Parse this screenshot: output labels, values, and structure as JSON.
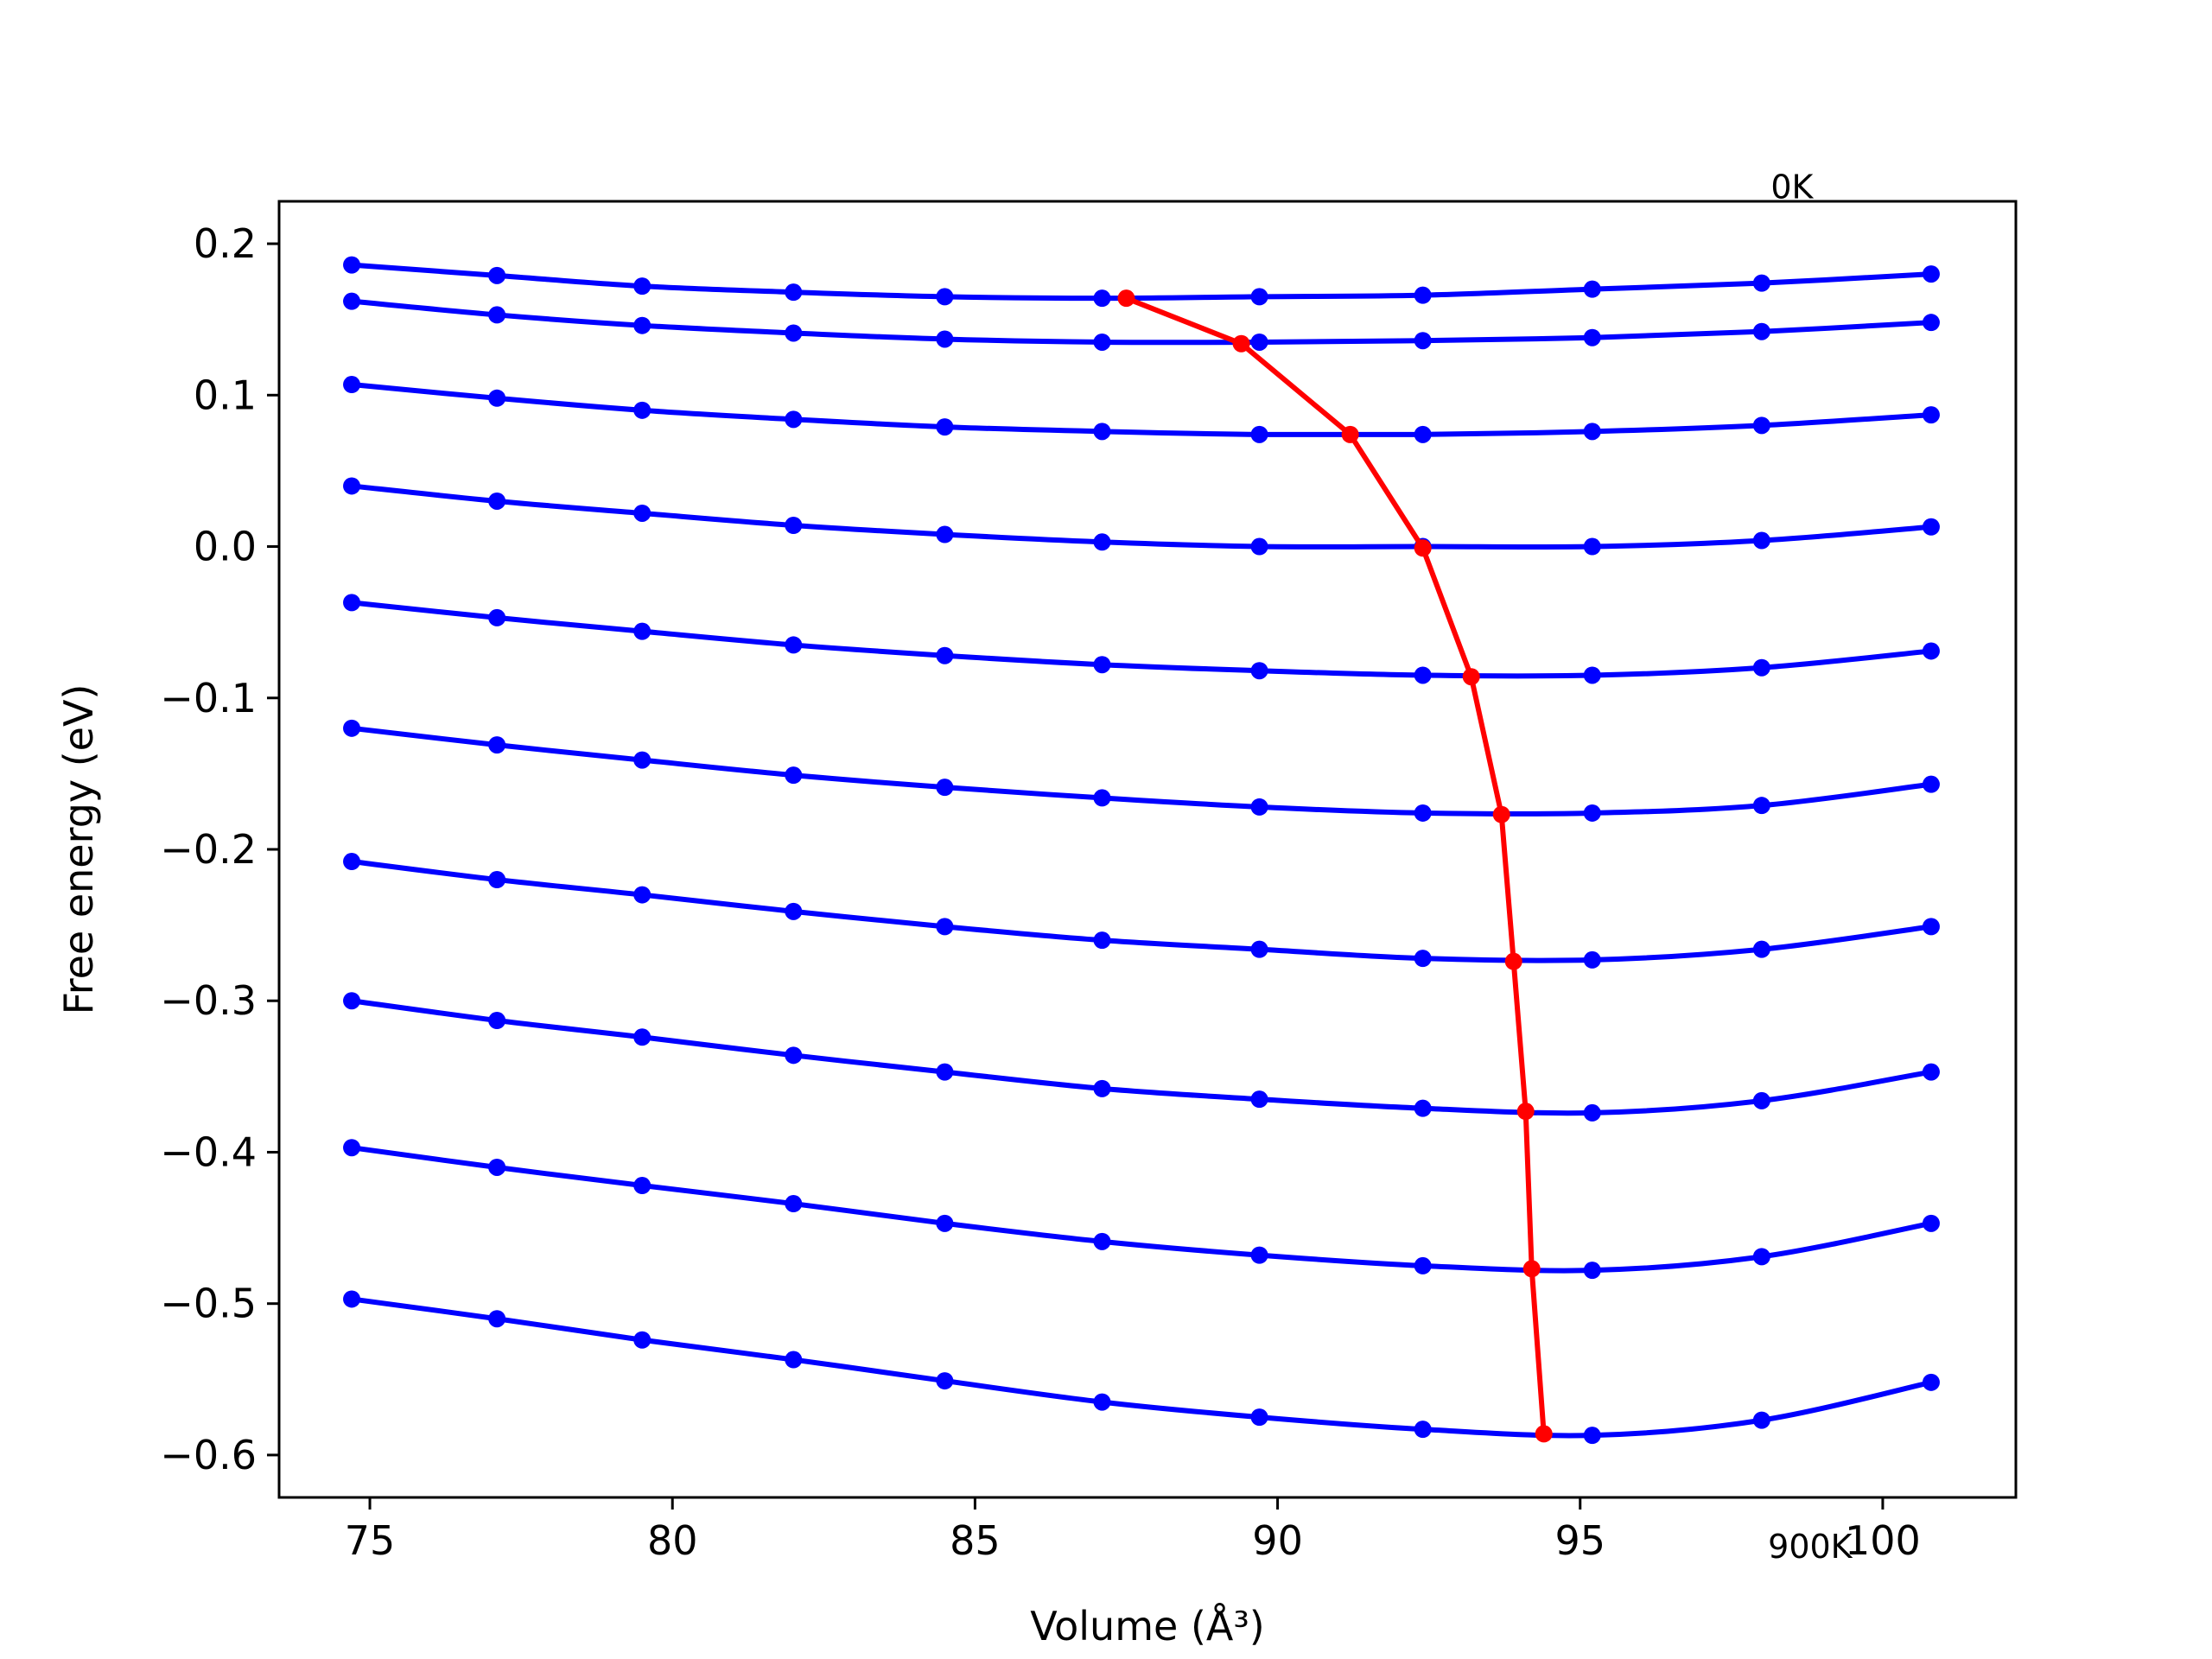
{
  "chart_data": {
    "type": "line",
    "title": "",
    "xlabel": "Volume (Å³)",
    "ylabel": "Free energy (eV)",
    "xlim": [
      73.5,
      102.2
    ],
    "ylim": [
      -0.628,
      0.228
    ],
    "xticks": [
      75,
      80,
      85,
      90,
      95,
      100
    ],
    "yticks": [
      0.2,
      0.1,
      0.0,
      -0.1,
      -0.2,
      -0.3,
      -0.4,
      -0.5,
      -0.6
    ],
    "xtick_labels": [
      "75",
      "80",
      "85",
      "90",
      "95",
      "100"
    ],
    "ytick_labels": [
      "0.2",
      "0.1",
      "0.0",
      "−0.1",
      "−0.2",
      "−0.3",
      "−0.4",
      "−0.5",
      "−0.6"
    ],
    "grid": false,
    "annotations": [
      {
        "text": "0K",
        "x": 98.5,
        "y": 0.23,
        "placement": "above-axes"
      },
      {
        "text": "900K",
        "x": 98.8,
        "y": -0.668,
        "placement": "below-axes"
      }
    ],
    "x": [
      74.7,
      77.1,
      79.5,
      82.0,
      84.5,
      87.1,
      89.7,
      92.4,
      95.2,
      98.0,
      100.8
    ],
    "series": [
      {
        "color": "#0000ff",
        "values": [
          0.186,
          0.179,
          0.172,
          0.168,
          0.165,
          0.164,
          0.165,
          0.166,
          0.17,
          0.174,
          0.18
        ]
      },
      {
        "color": "#0000ff",
        "values": [
          0.162,
          0.153,
          0.146,
          0.141,
          0.137,
          0.135,
          0.135,
          0.136,
          0.138,
          0.142,
          0.148
        ]
      },
      {
        "color": "#0000ff",
        "values": [
          0.107,
          0.098,
          0.09,
          0.084,
          0.079,
          0.076,
          0.074,
          0.074,
          0.076,
          0.08,
          0.087
        ]
      },
      {
        "color": "#0000ff",
        "values": [
          0.04,
          0.03,
          0.022,
          0.014,
          0.008,
          0.003,
          0.0,
          0.0,
          0.0,
          0.004,
          0.013
        ]
      },
      {
        "color": "#0000ff",
        "values": [
          -0.037,
          -0.047,
          -0.056,
          -0.065,
          -0.072,
          -0.078,
          -0.082,
          -0.085,
          -0.085,
          -0.08,
          -0.069
        ]
      },
      {
        "color": "#0000ff",
        "values": [
          -0.12,
          -0.131,
          -0.141,
          -0.151,
          -0.159,
          -0.166,
          -0.172,
          -0.176,
          -0.176,
          -0.171,
          -0.157
        ]
      },
      {
        "color": "#0000ff",
        "values": [
          -0.208,
          -0.22,
          -0.23,
          -0.241,
          -0.251,
          -0.26,
          -0.266,
          -0.272,
          -0.273,
          -0.266,
          -0.251
        ]
      },
      {
        "color": "#0000ff",
        "values": [
          -0.3,
          -0.313,
          -0.324,
          -0.336,
          -0.347,
          -0.358,
          -0.365,
          -0.371,
          -0.374,
          -0.366,
          -0.347
        ]
      },
      {
        "color": "#0000ff",
        "values": [
          -0.397,
          -0.41,
          -0.422,
          -0.434,
          -0.447,
          -0.459,
          -0.468,
          -0.475,
          -0.478,
          -0.469,
          -0.447
        ]
      },
      {
        "color": "#0000ff",
        "values": [
          -0.497,
          -0.51,
          -0.524,
          -0.537,
          -0.551,
          -0.565,
          -0.575,
          -0.583,
          -0.587,
          -0.577,
          -0.552
        ]
      }
    ],
    "minimum_curve": {
      "color": "#ff0000",
      "x": [
        87.5,
        89.4,
        91.2,
        92.4,
        93.2,
        93.7,
        93.9,
        94.1,
        94.2,
        94.4
      ],
      "y": [
        0.164,
        0.134,
        0.074,
        -0.001,
        -0.086,
        -0.177,
        -0.274,
        -0.373,
        -0.477,
        -0.586
      ]
    }
  }
}
